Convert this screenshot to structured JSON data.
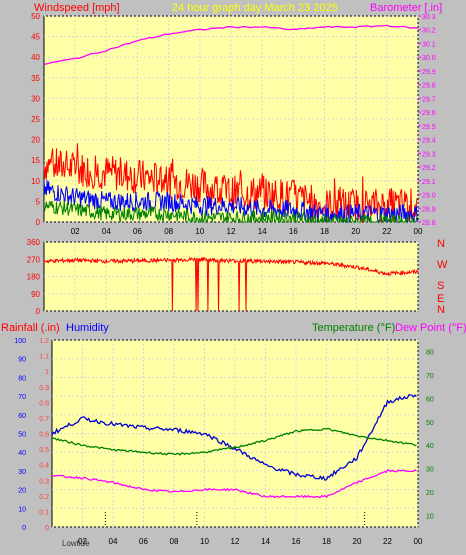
{
  "header": {
    "wind_label": "Windspeed [mph]",
    "title": "24 hour graph day   March 23 2025",
    "baro_label": "Barometer [.in]"
  },
  "middle": {
    "compass": [
      "N",
      "W",
      "S",
      "E",
      "N"
    ]
  },
  "bottom_header": {
    "rain_label": "Rainfall (.in)",
    "humidity_label": "Humidity",
    "temp_label": "Temperature (°F)",
    "dew_label": "Dew Point (°F)"
  },
  "footer": {
    "lowtide_label": "Lowtide"
  },
  "colors": {
    "background": "#c0c0c0",
    "plot": "#ffffa8",
    "wind_gust": "#ff0000",
    "wind_avg": "#0000ff",
    "wind_low": "#008000",
    "barometer": "#ff00ff",
    "direction": "#ff0000",
    "humidity": "#0000cc",
    "temperature": "#008000",
    "dewpoint": "#ff00ff",
    "rain_axis": "#0000ff"
  },
  "chart_data": [
    {
      "type": "line",
      "title": "24 hour graph day   March 23 2025",
      "x_ticks": [
        "02",
        "04",
        "06",
        "08",
        "10",
        "12",
        "14",
        "16",
        "18",
        "20",
        "22",
        "00"
      ],
      "y_left_label": "Windspeed [mph]",
      "y_left_ticks": [
        0,
        5,
        10,
        15,
        20,
        25,
        30,
        35,
        40,
        45,
        50
      ],
      "y_right_label": "Barometer [.in]",
      "y_right_ticks": [
        28.8,
        28.9,
        29.0,
        29.1,
        29.2,
        29.3,
        29.4,
        29.5,
        29.6,
        29.7,
        29.8,
        29.9,
        30.0,
        30.1,
        30.2,
        30.3
      ],
      "hours": [
        0,
        2,
        4,
        6,
        8,
        10,
        12,
        14,
        16,
        18,
        20,
        22,
        24
      ],
      "series": [
        {
          "role": "wind-gust",
          "values": [
            14,
            13,
            12,
            11,
            10,
            9,
            7,
            7,
            6,
            4,
            4,
            4,
            4
          ]
        },
        {
          "role": "wind-avg",
          "values": [
            8,
            6,
            5,
            5,
            5,
            4,
            4,
            3,
            3,
            2,
            2,
            2,
            2
          ]
        },
        {
          "role": "wind-low",
          "values": [
            4,
            3,
            2,
            2,
            2,
            1,
            1,
            1,
            1,
            0,
            0,
            0,
            0
          ]
        },
        {
          "role": "barometer",
          "axis": "right",
          "values": [
            29.95,
            29.99,
            30.05,
            30.12,
            30.17,
            30.2,
            30.22,
            30.22,
            30.2,
            30.22,
            30.22,
            30.23,
            30.21
          ]
        }
      ]
    },
    {
      "type": "line",
      "y_ticks": [
        0,
        90,
        180,
        270,
        360
      ],
      "x_ticks": [
        "02",
        "04",
        "06",
        "08",
        "10",
        "12",
        "14",
        "16",
        "18",
        "20",
        "22",
        "00"
      ],
      "hours": [
        0,
        2,
        4,
        6,
        8,
        10,
        12,
        14,
        16,
        18,
        20,
        22,
        24
      ],
      "series": [
        {
          "role": "wind-direction",
          "values": [
            260,
            265,
            260,
            262,
            265,
            270,
            262,
            260,
            255,
            250,
            230,
            195,
            205
          ]
        }
      ]
    },
    {
      "type": "line",
      "x_ticks": [
        "02",
        "04",
        "06",
        "08",
        "10",
        "12",
        "14",
        "16",
        "18",
        "20",
        "22",
        "00"
      ],
      "y_left_rain_label": "Rainfall (.in)",
      "y_left_rain_ticks": [
        0,
        0.1,
        0.2,
        0.3,
        0.4,
        0.5,
        0.6,
        0.7,
        0.8,
        0.9,
        1.0,
        1.1,
        1.2
      ],
      "y_left_humidity_label": "Humidity",
      "y_left_humidity_ticks": [
        0,
        10,
        20,
        30,
        40,
        50,
        60,
        70,
        80,
        90,
        100
      ],
      "y_right_label": "Temperature (°F)",
      "y_right_ticks": [
        10,
        20,
        30,
        40,
        50,
        60,
        70,
        80
      ],
      "hours": [
        0,
        2,
        4,
        6,
        8,
        10,
        12,
        14,
        16,
        18,
        20,
        22,
        24
      ],
      "series": [
        {
          "name": "Humidity",
          "axis": "humidity",
          "values": [
            50,
            58,
            55,
            53,
            52,
            50,
            42,
            33,
            28,
            26,
            37,
            67,
            71
          ]
        },
        {
          "name": "Temperature (°F)",
          "axis": "temperature",
          "values": [
            43,
            40,
            38,
            37,
            36,
            37,
            39,
            42,
            46,
            47,
            44,
            42,
            40
          ]
        },
        {
          "name": "Dew Point (°F)",
          "axis": "temperature",
          "values": [
            27,
            26,
            24,
            21,
            20,
            21,
            21,
            18,
            18,
            18,
            24,
            29,
            29
          ]
        }
      ],
      "lowtide_markers": [
        3.5,
        9.5,
        20.5
      ]
    }
  ]
}
